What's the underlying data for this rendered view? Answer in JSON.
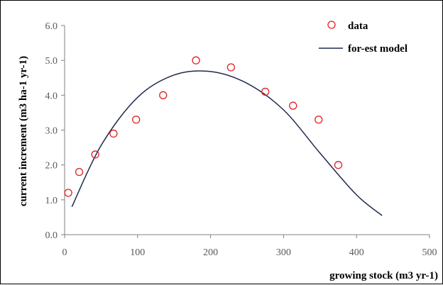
{
  "chart_data": {
    "type": "scatter",
    "xlabel": "growing stock (m3 yr-1)",
    "ylabel": "current increment (m3 ha-1 yr-1)",
    "xlim": [
      0,
      500
    ],
    "ylim": [
      0,
      6
    ],
    "x_ticks": [
      "0",
      "100",
      "200",
      "300",
      "400",
      "500"
    ],
    "y_ticks": [
      "0.0",
      "1.0",
      "2.0",
      "3.0",
      "4.0",
      "5.0",
      "6.0"
    ],
    "x_tick_values": [
      0,
      100,
      200,
      300,
      400,
      500
    ],
    "y_tick_values": [
      0,
      1,
      2,
      3,
      4,
      5,
      6
    ],
    "grid": false,
    "legend_position": "top-right",
    "series": [
      {
        "name": "data",
        "kind": "scatter",
        "color": "#e02020",
        "points": [
          {
            "x": 5,
            "y": 1.2
          },
          {
            "x": 20,
            "y": 1.8
          },
          {
            "x": 42,
            "y": 2.3
          },
          {
            "x": 67,
            "y": 2.9
          },
          {
            "x": 98,
            "y": 3.3
          },
          {
            "x": 135,
            "y": 4.0
          },
          {
            "x": 180,
            "y": 5.0
          },
          {
            "x": 228,
            "y": 4.8
          },
          {
            "x": 275,
            "y": 4.1
          },
          {
            "x": 313,
            "y": 3.7
          },
          {
            "x": 348,
            "y": 3.3
          },
          {
            "x": 375,
            "y": 2.0
          }
        ]
      },
      {
        "name": "for-est model",
        "kind": "line",
        "color": "#1f2a4d",
        "points": [
          {
            "x": 10,
            "y": 0.8
          },
          {
            "x": 50,
            "y": 2.56
          },
          {
            "x": 100,
            "y": 3.94
          },
          {
            "x": 150,
            "y": 4.58
          },
          {
            "x": 200,
            "y": 4.68
          },
          {
            "x": 250,
            "y": 4.34
          },
          {
            "x": 300,
            "y": 3.58
          },
          {
            "x": 350,
            "y": 2.34
          },
          {
            "x": 400,
            "y": 1.14
          },
          {
            "x": 435,
            "y": 0.55
          }
        ]
      }
    ]
  }
}
